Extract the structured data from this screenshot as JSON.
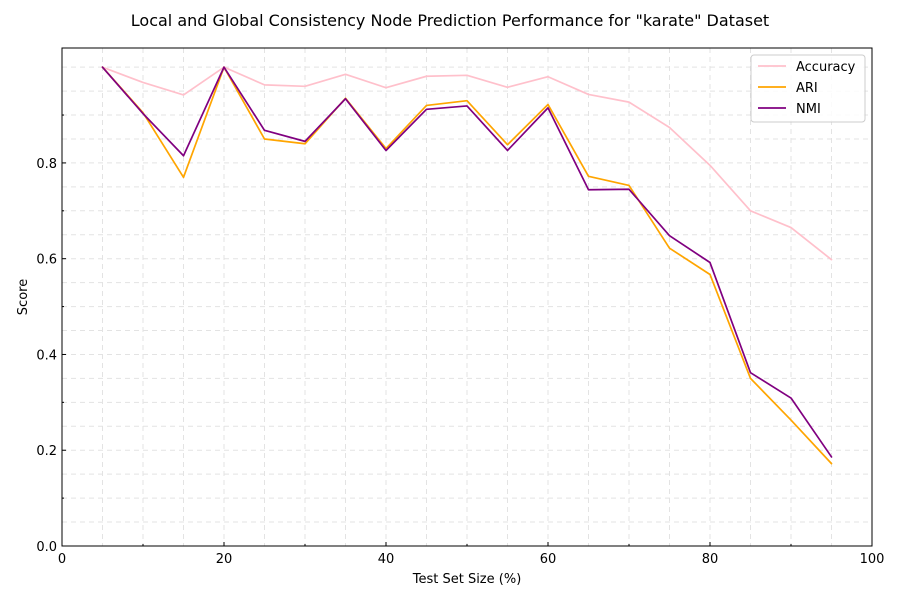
{
  "chart_data": {
    "type": "line",
    "title": "Local and Global Consistency Node Prediction Performance for \"karate\" Dataset",
    "xlabel": "Test Set Size (%)",
    "ylabel": "Score",
    "xlim": [
      0,
      100
    ],
    "ylim": [
      0,
      1.04
    ],
    "xticks": [
      0,
      20,
      40,
      60,
      80,
      100
    ],
    "yticks": [
      0.0,
      0.2,
      0.4,
      0.6,
      0.8
    ],
    "xtick_labels": [
      "0",
      "20",
      "40",
      "60",
      "80",
      "100"
    ],
    "ytick_labels": [
      "0.0",
      "0.2",
      "0.4",
      "0.6",
      "0.8"
    ],
    "grid": true,
    "legend_position": "top-right",
    "x": [
      5,
      10,
      15,
      20,
      25,
      30,
      35,
      40,
      45,
      50,
      55,
      60,
      65,
      70,
      75,
      80,
      85,
      90,
      95
    ],
    "series": [
      {
        "name": "Accuracy",
        "color": "#ffc0cb",
        "values": [
          1.0,
          0.968,
          0.942,
          1.0,
          0.963,
          0.96,
          0.985,
          0.957,
          0.981,
          0.983,
          0.958,
          0.98,
          0.943,
          0.927,
          0.874,
          0.795,
          0.7,
          0.665,
          0.598
        ]
      },
      {
        "name": "ARI",
        "color": "#ffa500",
        "values": [
          1.0,
          0.905,
          0.77,
          1.0,
          0.85,
          0.84,
          0.935,
          0.83,
          0.92,
          0.93,
          0.838,
          0.922,
          0.772,
          0.753,
          0.622,
          0.567,
          0.35,
          0.263,
          0.172
        ]
      },
      {
        "name": "NMI",
        "color": "#800080",
        "values": [
          1.0,
          0.903,
          0.815,
          1.0,
          0.868,
          0.845,
          0.934,
          0.826,
          0.912,
          0.919,
          0.826,
          0.915,
          0.744,
          0.745,
          0.648,
          0.592,
          0.362,
          0.309,
          0.186
        ]
      }
    ]
  }
}
